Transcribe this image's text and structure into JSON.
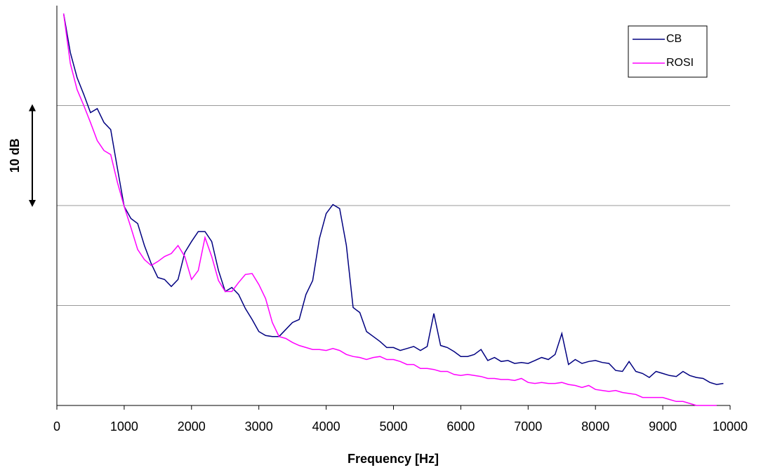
{
  "chart_data": {
    "type": "line",
    "xlabel": "Frequency [Hz]",
    "annotation": "10 dB",
    "x": [
      100,
      200,
      300,
      400,
      500,
      600,
      700,
      800,
      900,
      1000,
      1100,
      1200,
      1300,
      1400,
      1500,
      1600,
      1700,
      1800,
      1900,
      2000,
      2100,
      2200,
      2300,
      2400,
      2500,
      2600,
      2700,
      2800,
      2900,
      3000,
      3100,
      3200,
      3300,
      3400,
      3500,
      3600,
      3700,
      3800,
      3900,
      4000,
      4100,
      4200,
      4300,
      4400,
      4500,
      4600,
      4700,
      4800,
      4900,
      5000,
      5100,
      5200,
      5300,
      5400,
      5500,
      5600,
      5700,
      5800,
      5900,
      6000,
      6100,
      6200,
      6300,
      6400,
      6500,
      6600,
      6700,
      6800,
      6900,
      7000,
      7100,
      7200,
      7300,
      7400,
      7500,
      7600,
      7700,
      7800,
      7900,
      8000,
      8100,
      8200,
      8300,
      8400,
      8500,
      8600,
      8700,
      8800,
      8900,
      9000,
      9100,
      9200,
      9300,
      9400,
      9500,
      9600,
      9700,
      9800,
      9900
    ],
    "series": [
      {
        "name": "CB",
        "color": "#000080",
        "values": [
          39.2,
          35.3,
          32.8,
          31.1,
          29.3,
          29.7,
          28.3,
          27.6,
          23.7,
          19.9,
          18.7,
          18.2,
          16.0,
          14.2,
          12.8,
          12.6,
          11.9,
          12.6,
          15.3,
          16.4,
          17.4,
          17.4,
          16.4,
          13.5,
          11.4,
          11.8,
          11.1,
          9.7,
          8.6,
          7.4,
          7.0,
          6.9,
          6.9,
          7.6,
          8.3,
          8.6,
          11.1,
          12.5,
          16.7,
          19.2,
          20.1,
          19.7,
          16.0,
          9.8,
          9.3,
          7.4,
          6.9,
          6.4,
          5.8,
          5.8,
          5.5,
          5.7,
          5.9,
          5.5,
          5.9,
          9.2,
          6.0,
          5.8,
          5.4,
          4.9,
          4.9,
          5.1,
          5.6,
          4.5,
          4.8,
          4.4,
          4.5,
          4.2,
          4.3,
          4.2,
          4.5,
          4.8,
          4.6,
          5.1,
          7.2,
          4.1,
          4.6,
          4.2,
          4.4,
          4.5,
          4.3,
          4.2,
          3.5,
          3.4,
          4.4,
          3.4,
          3.2,
          2.8,
          3.4,
          3.2,
          3.0,
          2.9,
          3.4,
          3.0,
          2.8,
          2.7,
          2.3,
          2.1,
          2.2
        ]
      },
      {
        "name": "ROSI",
        "color": "#ff00ff",
        "values": [
          39.2,
          34.2,
          31.6,
          30.0,
          28.3,
          26.5,
          25.5,
          25.1,
          22.3,
          19.9,
          17.8,
          15.6,
          14.6,
          14.0,
          14.4,
          14.9,
          15.2,
          16.0,
          14.9,
          12.6,
          13.5,
          16.8,
          14.9,
          12.5,
          11.4,
          11.4,
          12.3,
          13.1,
          13.2,
          12.1,
          10.7,
          8.3,
          6.9,
          6.7,
          6.3,
          6.0,
          5.8,
          5.6,
          5.6,
          5.5,
          5.7,
          5.5,
          5.1,
          4.9,
          4.8,
          4.6,
          4.8,
          4.9,
          4.6,
          4.6,
          4.4,
          4.1,
          4.1,
          3.7,
          3.7,
          3.6,
          3.4,
          3.4,
          3.1,
          3.0,
          3.1,
          3.0,
          2.9,
          2.7,
          2.7,
          2.6,
          2.6,
          2.5,
          2.7,
          2.3,
          2.2,
          2.3,
          2.2,
          2.2,
          2.3,
          2.1,
          2.0,
          1.8,
          2.0,
          1.6,
          1.5,
          1.4,
          1.5,
          1.3,
          1.2,
          1.1,
          0.8,
          0.8,
          0.8,
          0.8,
          0.6,
          0.4,
          0.4,
          0.2,
          0.0,
          0.0,
          0.0,
          0.0,
          null
        ]
      }
    ],
    "xlim": [
      0,
      10000
    ],
    "xticks": [
      0,
      1000,
      2000,
      3000,
      4000,
      5000,
      6000,
      7000,
      8000,
      9000,
      10000
    ],
    "ylim": [
      0,
      40
    ],
    "yticks": [
      10,
      20,
      30
    ],
    "grid": true,
    "legend": "upper right"
  }
}
